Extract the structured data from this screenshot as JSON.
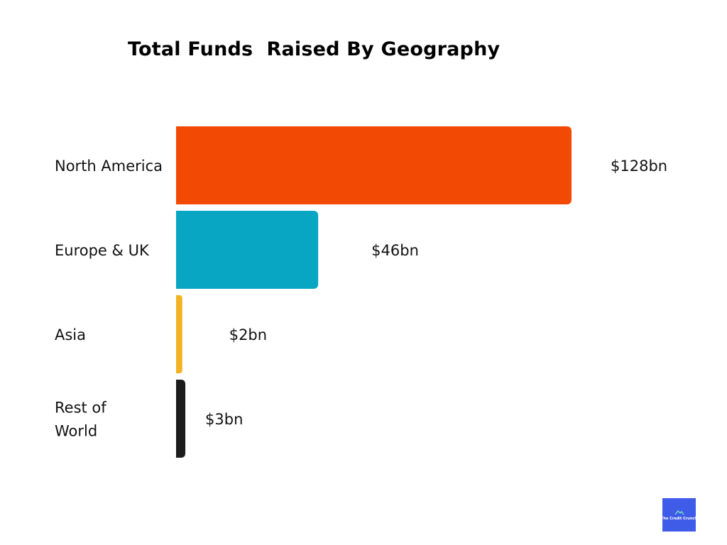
{
  "chart_data": {
    "type": "bar",
    "orientation": "horizontal",
    "title": "Total Funds  Raised By Geography",
    "categories": [
      "North America",
      "Europe & UK",
      "Asia",
      "Rest of World"
    ],
    "category_lines": [
      [
        "North America"
      ],
      [
        "Europe & UK"
      ],
      [
        "Asia"
      ],
      [
        "Rest of",
        "World"
      ]
    ],
    "values": [
      128,
      46,
      2,
      3
    ],
    "unit": "$bn",
    "data_labels": [
      "$128bn",
      "$46bn",
      "$2bn",
      "$3bn"
    ],
    "colors": [
      "#f24a05",
      "#09a6c4",
      "#f3b321",
      "#1c1c1c"
    ],
    "xlim": [
      0,
      128
    ],
    "grid": false,
    "legend": "none"
  },
  "logo": {
    "text": "The Credit Crunch",
    "background": "#3e5ce8",
    "icon": "house-roof-icon"
  }
}
